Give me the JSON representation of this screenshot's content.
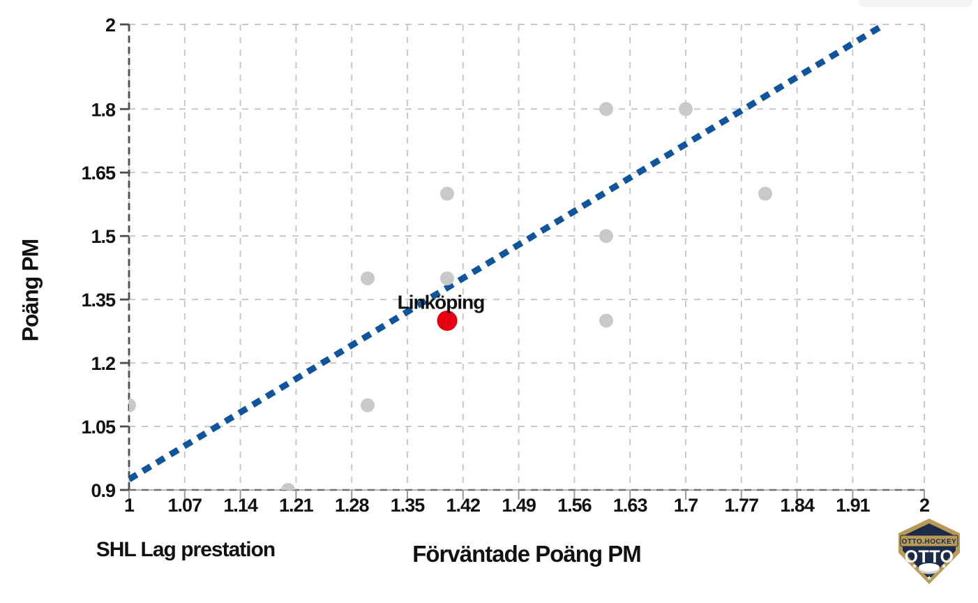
{
  "chart_data": {
    "type": "scatter",
    "title": "",
    "xlabel": "Förväntade Poäng PM",
    "ylabel": "Poäng PM",
    "context_label": "SHL Lag prestation",
    "xlim": [
      1,
      2
    ],
    "ylim": [
      0.9,
      2
    ],
    "grid": true,
    "legend": "none",
    "xticks": [
      {
        "v": 1,
        "label": "1"
      },
      {
        "v": 1.07,
        "label": "1.07"
      },
      {
        "v": 1.14,
        "label": "1.14"
      },
      {
        "v": 1.21,
        "label": "1.21"
      },
      {
        "v": 1.28,
        "label": "1.28"
      },
      {
        "v": 1.35,
        "label": "1.35"
      },
      {
        "v": 1.42,
        "label": "1.42"
      },
      {
        "v": 1.49,
        "label": "1.49"
      },
      {
        "v": 1.56,
        "label": "1.56"
      },
      {
        "v": 1.63,
        "label": "1.63"
      },
      {
        "v": 1.7,
        "label": "1.7"
      },
      {
        "v": 1.77,
        "label": "1.77"
      },
      {
        "v": 1.84,
        "label": "1.84"
      },
      {
        "v": 1.91,
        "label": "1.91"
      },
      {
        "v": 2,
        "label": "2"
      }
    ],
    "yticks": [
      {
        "v": 0.9,
        "label": "0.9"
      },
      {
        "v": 1.05,
        "label": "1.05"
      },
      {
        "v": 1.2,
        "label": "1.2"
      },
      {
        "v": 1.35,
        "label": "1.35"
      },
      {
        "v": 1.5,
        "label": "1.5"
      },
      {
        "v": 1.65,
        "label": "1.65"
      },
      {
        "v": 1.8,
        "label": "1.8"
      },
      {
        "v": 2,
        "label": "2"
      }
    ],
    "series": [
      {
        "color": "#c9c9c9",
        "marker_radius": 10,
        "points": [
          [
            1.0,
            1.1
          ],
          [
            1.2,
            0.9
          ],
          [
            1.3,
            1.4
          ],
          [
            1.3,
            1.1
          ],
          [
            1.4,
            1.6
          ],
          [
            1.4,
            1.4
          ],
          [
            1.6,
            1.8
          ],
          [
            1.6,
            1.5
          ],
          [
            1.6,
            1.3
          ],
          [
            1.7,
            1.8
          ],
          [
            1.8,
            1.6
          ]
        ]
      },
      {
        "label": "Linköping",
        "color": "#e60012",
        "marker_radius": 14.5,
        "points": [
          [
            1.4,
            1.3
          ]
        ]
      }
    ],
    "trendline": {
      "x1": 1.0,
      "y1": 0.925,
      "x2": 1.95,
      "y2": 2.0,
      "style": "dashed",
      "color": "#10559b"
    },
    "colors": {
      "background": "#ffffff",
      "grid": "#c8c8c8",
      "axis_line": "#4d4d4d",
      "bottom_axis_base": "#b0b0b0",
      "bottom_axis_dash": "#707070",
      "tick_mark": "#9a9a9a",
      "text": "#111111",
      "points": "#c9c9c9",
      "highlight": "#e60012",
      "trend": "#10559b"
    }
  },
  "logo": {
    "banner": "OTTO.HOCKEY",
    "name": "OTTO",
    "navy": "#1d2b4a",
    "gold": "#b99b57"
  }
}
